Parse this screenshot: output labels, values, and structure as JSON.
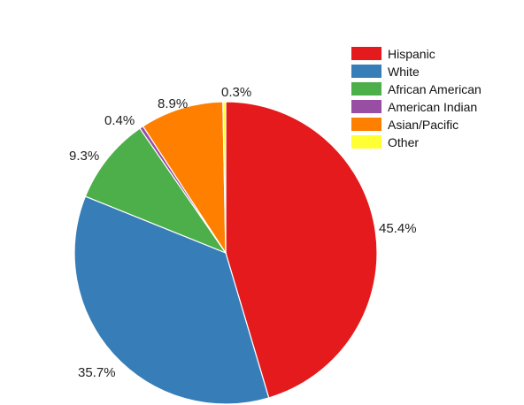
{
  "chart_data": {
    "type": "pie",
    "categories": [
      "Hispanic",
      "White",
      "African American",
      "American Indian",
      "Asian/Pacific",
      "Other"
    ],
    "values": [
      45.4,
      35.7,
      9.3,
      0.4,
      8.9,
      0.3
    ],
    "value_labels": [
      "45.4%",
      "35.7%",
      "9.3%",
      "0.4%",
      "8.9%",
      "0.3%"
    ],
    "colors": [
      "#e41a1c",
      "#377eb8",
      "#4daf4a",
      "#984ea3",
      "#ff7f00",
      "#ffff33"
    ],
    "start_angle": "12 o'clock",
    "direction": "clockwise",
    "legend_position": "top-right"
  }
}
